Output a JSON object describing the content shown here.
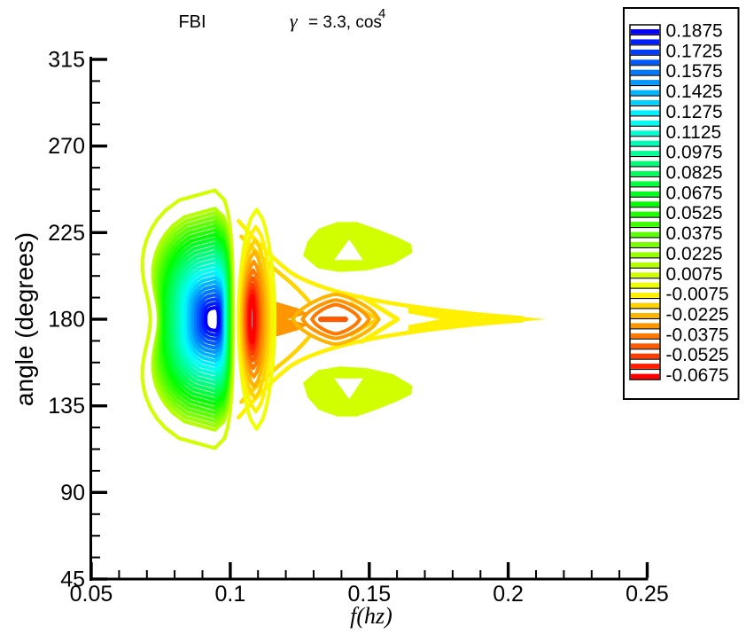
{
  "chart_data": {
    "type": "contour",
    "title_left": "FBI",
    "title_right_gamma": "γ",
    "title_right_mid": "= 3.3, cos",
    "title_right_sup": "4",
    "xlabel": "f(hz)",
    "ylabel": "angle (degrees)",
    "xlim": [
      0.05,
      0.25
    ],
    "ylim": [
      45,
      315
    ],
    "x_major_tick_labels": [
      "0.05",
      "0.1",
      "0.15",
      "0.2",
      "0.25"
    ],
    "x_major_tick_values": [
      0.05,
      0.1,
      0.15,
      0.2,
      0.25
    ],
    "x_minor_step": 0.01,
    "y_major_tick_labels": [
      "45",
      "90",
      "135",
      "180",
      "225",
      "270",
      "315"
    ],
    "y_major_tick_values": [
      45,
      90,
      135,
      180,
      225,
      270,
      315
    ],
    "y_minor_step": 11.25,
    "grid": false,
    "legend": {
      "position": "top-right",
      "level_max": 0.1875,
      "level_step": -0.0075,
      "num_levels": 35,
      "label_every_n_levels": 2,
      "labels": [
        "0.1875",
        "0.1725",
        "0.1575",
        "0.1425",
        "0.1275",
        "0.1125",
        "0.0975",
        "0.0825",
        "0.0675",
        "0.0525",
        "0.0375",
        "0.0225",
        "0.0075",
        "-0.0075",
        "-0.0225",
        "-0.0375",
        "-0.0525",
        "-0.0675"
      ],
      "colors": [
        "#0000FF",
        "#001EFF",
        "#003CFF",
        "#005AFF",
        "#0078FF",
        "#0096FF",
        "#00B4FF",
        "#00D2FF",
        "#00F0FF",
        "#00FFF0",
        "#00FFD2",
        "#00FFB4",
        "#00FF96",
        "#00FF78",
        "#00FF5A",
        "#00FF3C",
        "#00FF1E",
        "#00FF00",
        "#1EFF00",
        "#3CFF00",
        "#5AFF00",
        "#78FF00",
        "#96FF00",
        "#B4FF00",
        "#D2FF00",
        "#F0FF00",
        "#FFF000",
        "#FFD200",
        "#FFB400",
        "#FF9600",
        "#FF7800",
        "#FF5A00",
        "#FF3C00",
        "#FF1E00",
        "#FF0000"
      ]
    },
    "features": {
      "positive_lobe": {
        "center": {
          "f": 0.0945,
          "angle_deg": 180
        },
        "outer_level": 0.0075,
        "peak_level": 0.1875,
        "contour_count": 25,
        "f_range": [
          0.0665,
          0.1015
        ],
        "angle_range_deg": [
          113,
          247
        ],
        "waist_at_angle_deg": 180
      },
      "negative_lobe": {
        "center": {
          "f": 0.108,
          "angle_deg": 180
        },
        "outer_level": 0.0,
        "min_level": -0.0675,
        "contour_count": 10,
        "f_range": [
          0.0995,
          0.116
        ],
        "angle_range_deg": [
          123,
          237
        ]
      },
      "secondary_negative_cell": {
        "center": {
          "f": 0.138,
          "angle_deg": 180
        },
        "levels": [
          -0.0225,
          -0.03,
          -0.0375,
          -0.045
        ],
        "f_range": [
          0.1225,
          0.1535
        ],
        "angle_range_deg": [
          167,
          193
        ]
      },
      "tail": {
        "level": -0.0075,
        "tip_f": 0.214,
        "angle_deg": 180
      },
      "side_lobes": {
        "level": 0.0075,
        "upper": {
          "f_range": [
            0.1262,
            0.1655
          ],
          "angle_range_deg": [
            204,
            231
          ]
        },
        "lower": {
          "f_range": [
            0.1262,
            0.1655
          ],
          "angle_range_deg": [
            129,
            156
          ]
        }
      }
    }
  }
}
